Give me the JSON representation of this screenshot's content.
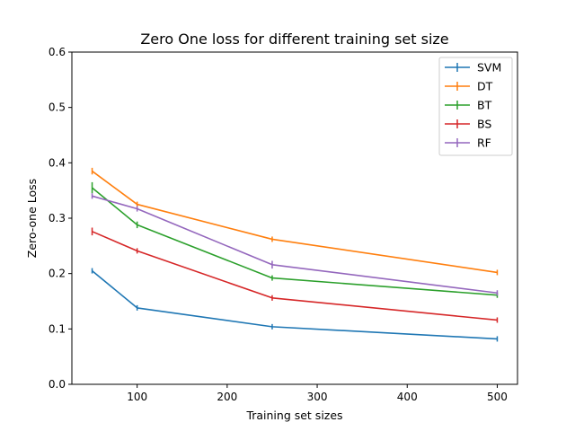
{
  "chart_data": {
    "type": "line",
    "title": "Zero One loss for different training set size",
    "xlabel": "Training set sizes",
    "ylabel": "Zero-one Loss",
    "x": [
      50,
      100,
      250,
      500
    ],
    "xlim": [
      27.5,
      522.5
    ],
    "ylim": [
      0,
      0.6
    ],
    "xticks": [
      "100",
      "200",
      "300",
      "400",
      "500"
    ],
    "yticks": [
      "0.0",
      "0.1",
      "0.2",
      "0.3",
      "0.4",
      "0.5",
      "0.6"
    ],
    "grid": false,
    "legend_position": "top-right",
    "error_bars": true,
    "series": [
      {
        "name": "SVM",
        "color": "#1f77b4",
        "values": [
          0.205,
          0.138,
          0.104,
          0.082
        ],
        "errors": [
          0.002,
          0.002,
          0.002,
          0.002
        ]
      },
      {
        "name": "DT",
        "color": "#ff7f0e",
        "values": [
          0.385,
          0.325,
          0.262,
          0.202
        ],
        "errors": [
          0.006,
          0.004,
          0.002,
          0.002
        ]
      },
      {
        "name": "BT",
        "color": "#2ca02c",
        "values": [
          0.355,
          0.288,
          0.192,
          0.161
        ],
        "errors": [
          0.01,
          0.006,
          0.004,
          0.003
        ]
      },
      {
        "name": "BS",
        "color": "#d62728",
        "values": [
          0.276,
          0.241,
          0.156,
          0.116
        ],
        "errors": [
          0.007,
          0.004,
          0.005,
          0.004
        ]
      },
      {
        "name": "RF",
        "color": "#9467bd",
        "values": [
          0.34,
          0.317,
          0.216,
          0.165
        ],
        "errors": [
          0.005,
          0.005,
          0.007,
          0.004
        ]
      }
    ]
  }
}
